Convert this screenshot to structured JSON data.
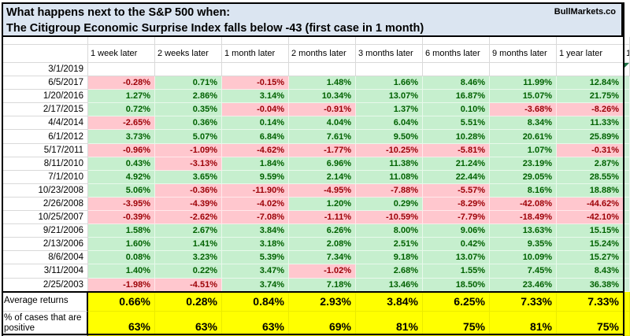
{
  "title": {
    "line1": "What happens next to the S&P 500 when:",
    "line2": "The Citigroup Economic Surprise Index falls below -43 (first case in 1 month)",
    "watermark": "BullMarkets.co"
  },
  "table": {
    "columns": [
      "1 week later",
      "2 weeks later",
      "1 month later",
      "2 months later",
      "3 months later",
      "6 months later",
      "9 months later",
      "1 year later"
    ],
    "sliver_header": "1",
    "rows": [
      {
        "date": "3/1/2019",
        "values": [
          "",
          "",
          "",
          "",
          "",
          "",
          "",
          ""
        ]
      },
      {
        "date": "6/5/2017",
        "values": [
          "-0.28%",
          "0.71%",
          "-0.15%",
          "1.48%",
          "1.66%",
          "8.46%",
          "11.99%",
          "12.84%"
        ]
      },
      {
        "date": "1/20/2016",
        "values": [
          "1.27%",
          "2.86%",
          "3.14%",
          "10.34%",
          "13.07%",
          "16.87%",
          "15.07%",
          "21.75%"
        ]
      },
      {
        "date": "2/17/2015",
        "values": [
          "0.72%",
          "0.35%",
          "-0.04%",
          "-0.91%",
          "1.37%",
          "0.10%",
          "-3.68%",
          "-8.26%"
        ]
      },
      {
        "date": "4/4/2014",
        "values": [
          "-2.65%",
          "0.36%",
          "0.14%",
          "4.04%",
          "6.04%",
          "5.51%",
          "8.34%",
          "11.33%"
        ]
      },
      {
        "date": "6/1/2012",
        "values": [
          "3.73%",
          "5.07%",
          "6.84%",
          "7.61%",
          "9.50%",
          "10.28%",
          "20.61%",
          "25.89%"
        ]
      },
      {
        "date": "5/17/2011",
        "values": [
          "-0.96%",
          "-1.09%",
          "-4.62%",
          "-1.77%",
          "-10.25%",
          "-5.81%",
          "1.07%",
          "-0.31%"
        ]
      },
      {
        "date": "8/11/2010",
        "values": [
          "0.43%",
          "-3.13%",
          "1.84%",
          "6.96%",
          "11.38%",
          "21.24%",
          "23.19%",
          "2.87%"
        ]
      },
      {
        "date": "7/1/2010",
        "values": [
          "4.92%",
          "3.65%",
          "9.59%",
          "2.14%",
          "11.08%",
          "22.44%",
          "29.05%",
          "28.55%"
        ]
      },
      {
        "date": "10/23/2008",
        "values": [
          "5.06%",
          "-0.36%",
          "-11.90%",
          "-4.95%",
          "-7.88%",
          "-5.57%",
          "8.16%",
          "18.88%"
        ]
      },
      {
        "date": "2/26/2008",
        "values": [
          "-3.95%",
          "-4.39%",
          "-4.02%",
          "1.20%",
          "0.29%",
          "-8.29%",
          "-42.08%",
          "-44.62%"
        ]
      },
      {
        "date": "10/25/2007",
        "values": [
          "-0.39%",
          "-2.62%",
          "-7.08%",
          "-1.11%",
          "-10.59%",
          "-7.79%",
          "-18.49%",
          "-42.10%"
        ]
      },
      {
        "date": "9/21/2006",
        "values": [
          "1.58%",
          "2.67%",
          "3.84%",
          "6.26%",
          "8.00%",
          "9.06%",
          "13.63%",
          "15.15%"
        ]
      },
      {
        "date": "2/13/2006",
        "values": [
          "1.60%",
          "1.41%",
          "3.18%",
          "2.08%",
          "2.51%",
          "0.42%",
          "9.35%",
          "15.24%"
        ]
      },
      {
        "date": "8/6/2004",
        "values": [
          "0.08%",
          "3.23%",
          "5.39%",
          "7.34%",
          "9.18%",
          "13.07%",
          "10.09%",
          "15.27%"
        ]
      },
      {
        "date": "3/11/2004",
        "values": [
          "1.40%",
          "0.22%",
          "3.47%",
          "-1.02%",
          "2.68%",
          "1.55%",
          "7.45%",
          "8.43%"
        ]
      },
      {
        "date": "2/25/2003",
        "values": [
          "-1.98%",
          "-4.51%",
          "3.74%",
          "7.18%",
          "13.46%",
          "18.50%",
          "23.46%",
          "36.38%"
        ]
      }
    ],
    "summary": {
      "average_label": "Average returns",
      "average_values": [
        "0.66%",
        "0.28%",
        "0.84%",
        "2.93%",
        "3.84%",
        "6.25%",
        "7.33%",
        "7.33%"
      ],
      "percent_label": "% of cases that are positive",
      "percent_values": [
        "63%",
        "63%",
        "63%",
        "69%",
        "81%",
        "75%",
        "81%",
        "75%"
      ]
    }
  },
  "colors": {
    "positive_bg": "#C6EFCE",
    "positive_text": "#006100",
    "negative_bg": "#FFC7CE",
    "negative_text": "#9C0006",
    "summary_bg": "#FFFF00",
    "title_bg": "#DBE5F1",
    "gridline": "#D9D9D9"
  }
}
